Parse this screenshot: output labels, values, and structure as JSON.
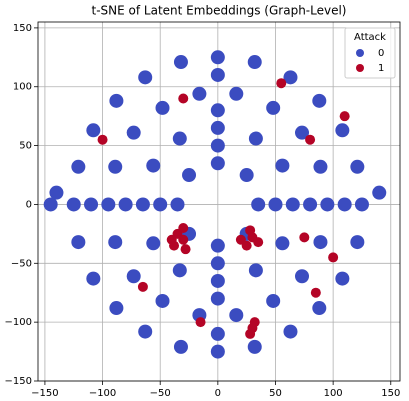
{
  "chart_data": {
    "type": "scatter",
    "title": "t-SNE of Latent Embeddings (Graph-Level)",
    "legend_title": "Attack",
    "legend_loc": "upper right",
    "grid": true,
    "xlim": [
      -156,
      158
    ],
    "ylim": [
      -150,
      155
    ],
    "xticks": [
      {
        "value": -150,
        "label": "−150"
      },
      {
        "value": -100,
        "label": "−100"
      },
      {
        "value": -50,
        "label": "−50"
      },
      0,
      50,
      100,
      150
    ],
    "yticks": [
      {
        "value": -150,
        "label": "−150"
      },
      {
        "value": -100,
        "label": "−100"
      },
      {
        "value": -50,
        "label": "−50"
      },
      0,
      50,
      100,
      150
    ],
    "series": [
      {
        "name": "0",
        "color": "#3b4cc0",
        "x": [
          125,
          121,
          108,
          88,
          63,
          32,
          0,
          -32,
          -63,
          -88,
          -108,
          -121,
          -125,
          -121,
          -108,
          -88,
          -63,
          -32,
          0,
          32,
          63,
          88,
          108,
          121,
          -145,
          -140,
          140,
          95,
          89,
          73,
          48,
          16,
          -16,
          -48,
          -73,
          -89,
          -95,
          -89,
          -73,
          -48,
          -16,
          16,
          48,
          73,
          89,
          65,
          56,
          33,
          0,
          -33,
          -56,
          -65,
          -56,
          -33,
          0,
          33,
          56,
          35,
          25,
          0,
          -25,
          -35,
          -25,
          0,
          25,
          110,
          0,
          -110,
          0,
          80,
          -80,
          0,
          0,
          50,
          -50,
          0,
          0
        ],
        "y": [
          0,
          32,
          63,
          88,
          108,
          121,
          125,
          121,
          108,
          88,
          63,
          32,
          0,
          -32,
          -63,
          -88,
          -108,
          -121,
          -125,
          -121,
          -108,
          -88,
          -63,
          -32,
          0,
          10,
          10,
          0,
          32,
          61,
          82,
          94,
          94,
          82,
          61,
          32,
          0,
          -32,
          -61,
          -82,
          -94,
          -94,
          -82,
          -61,
          -32,
          0,
          33,
          56,
          65,
          56,
          33,
          0,
          -33,
          -56,
          -65,
          -56,
          -33,
          0,
          25,
          35,
          25,
          0,
          -25,
          -35,
          -25,
          0,
          110,
          0,
          -110,
          0,
          0,
          80,
          -80,
          0,
          0,
          50,
          -50
        ]
      },
      {
        "name": "1",
        "color": "#b40426",
        "x": [
          -35,
          -30,
          -40,
          -30,
          -38,
          -28,
          20,
          30,
          25,
          35,
          28,
          30,
          32,
          28,
          -100,
          55,
          80,
          110,
          -30,
          85,
          -65,
          -15,
          100,
          75
        ],
        "y": [
          -25,
          -30,
          -30,
          -20,
          -35,
          -38,
          -30,
          -28,
          -35,
          -32,
          -22,
          -105,
          -100,
          -110,
          55,
          103,
          55,
          75,
          90,
          -75,
          -70,
          -100,
          -45,
          -28
        ]
      }
    ]
  }
}
